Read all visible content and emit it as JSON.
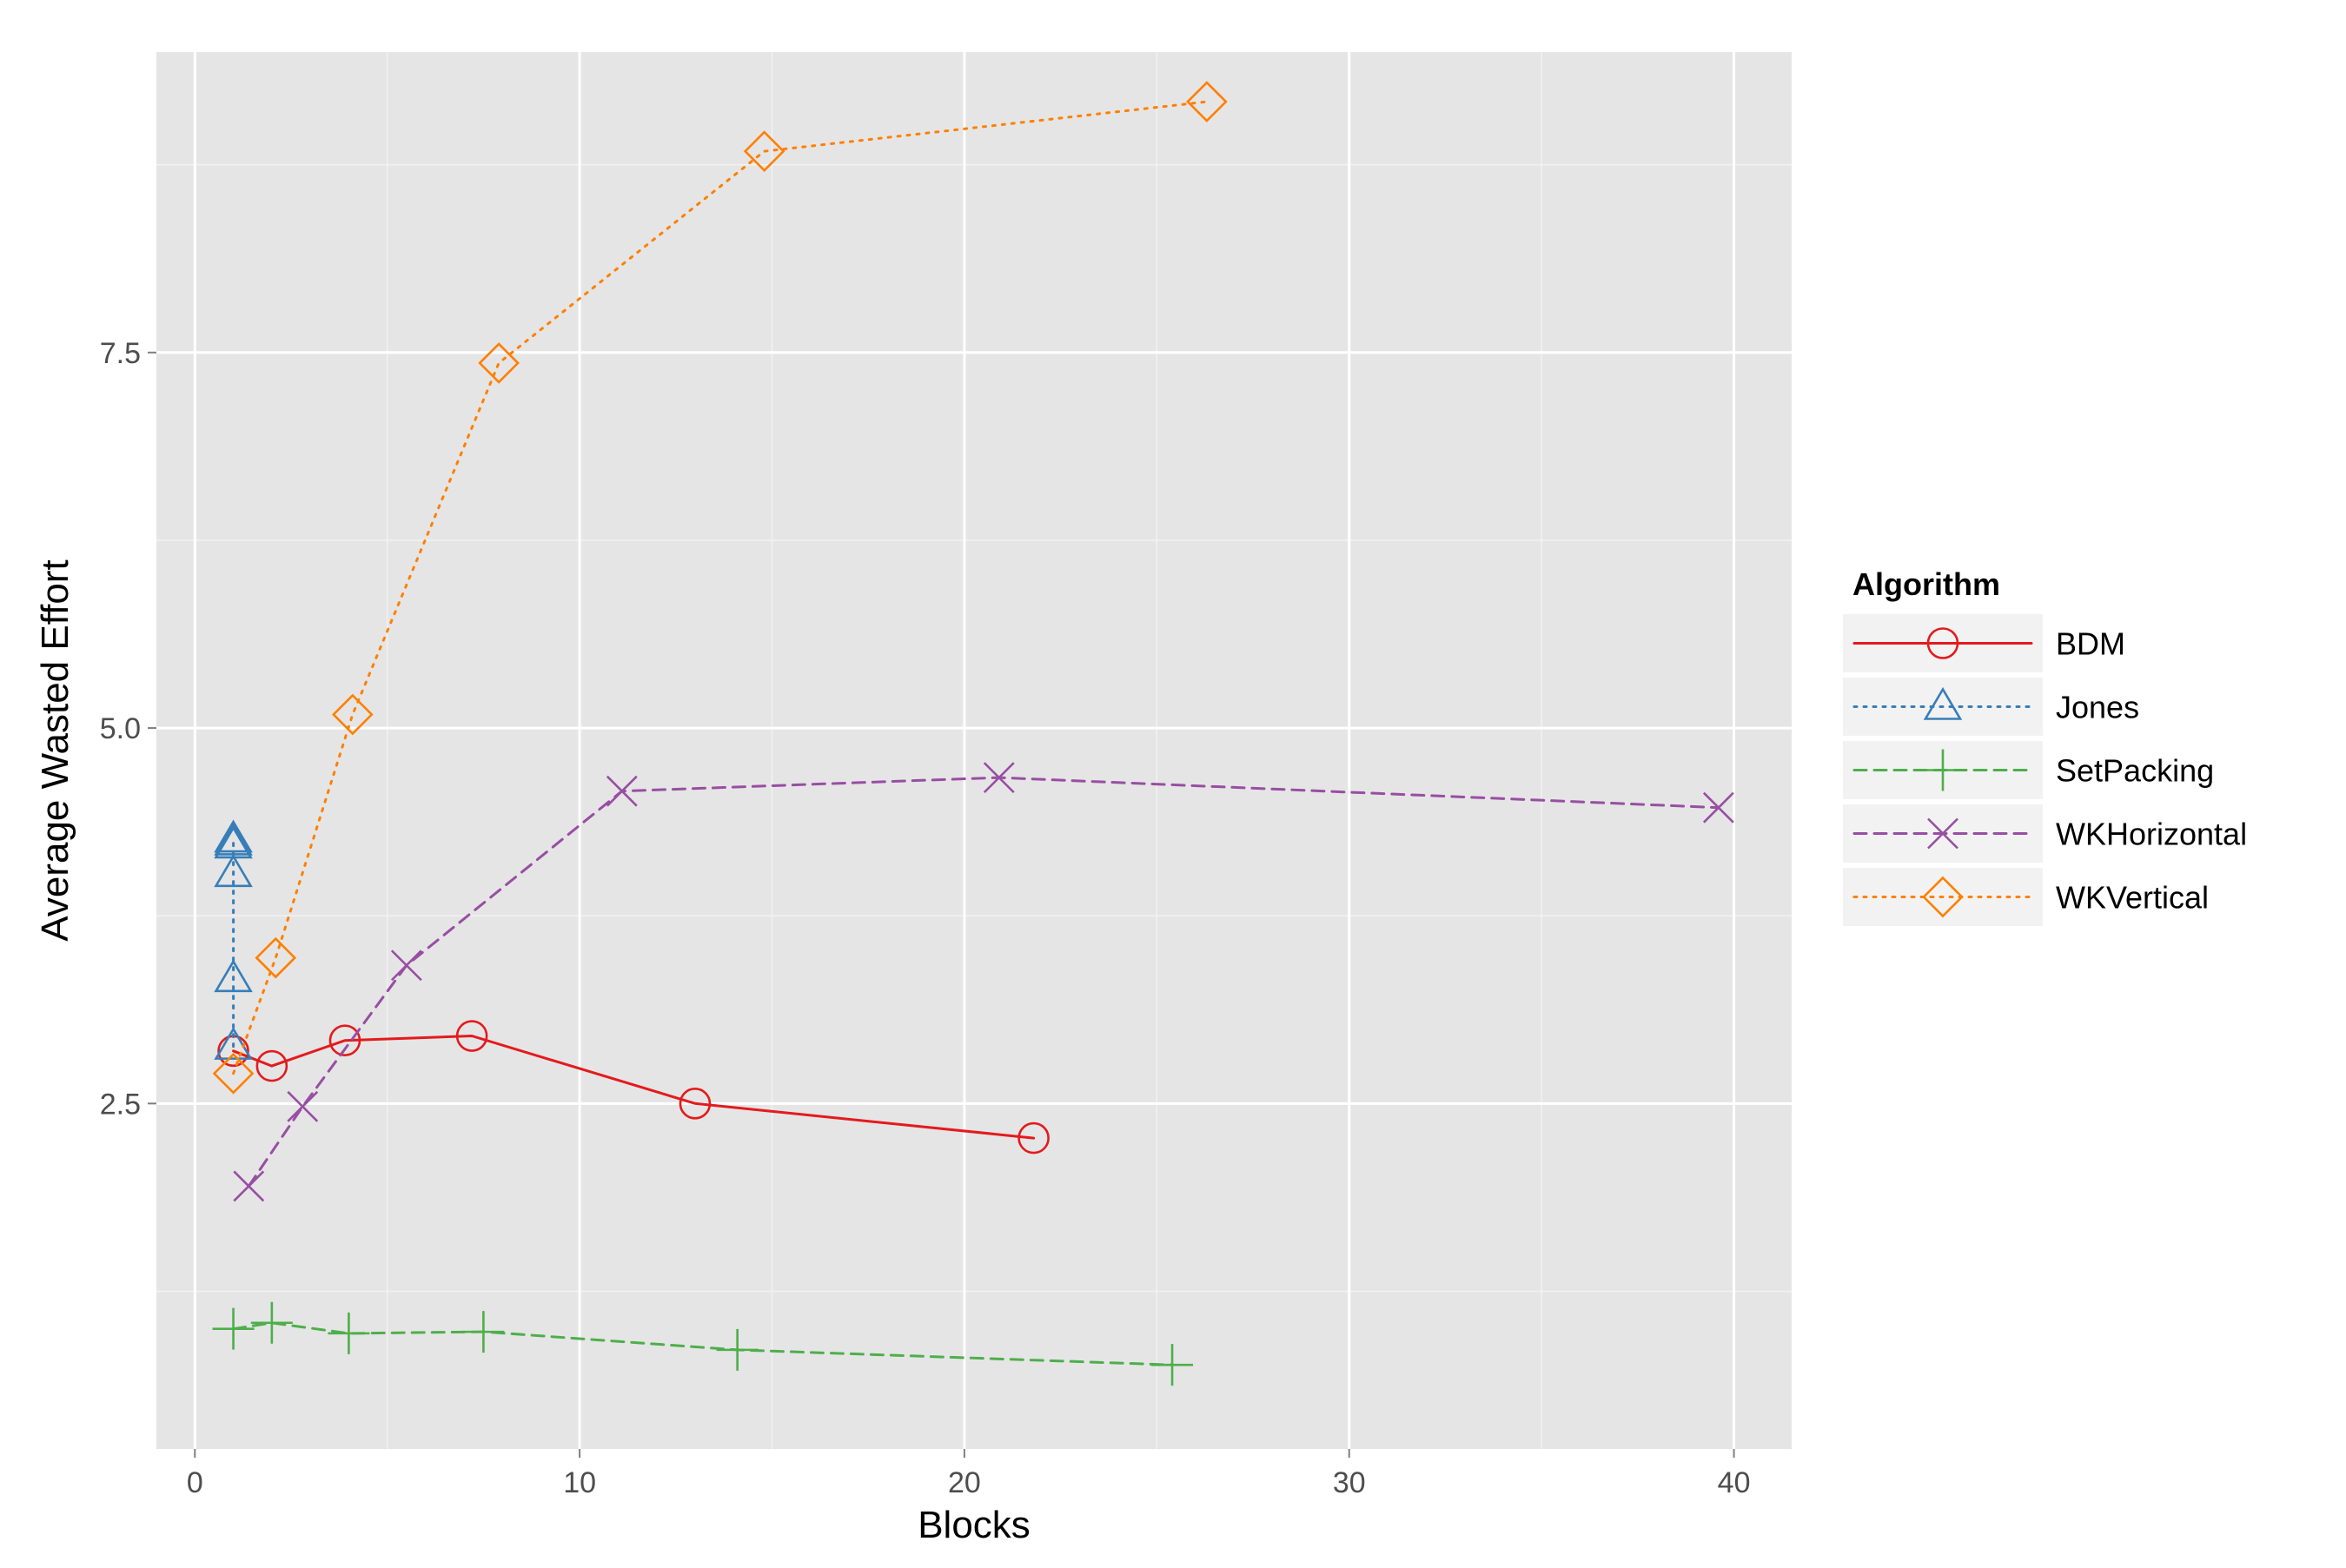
{
  "chart_data": {
    "type": "line",
    "title": "",
    "xlabel": "Blocks",
    "ylabel": "Average Wasted Effort",
    "xlim": [
      -1,
      41.5
    ],
    "ylim": [
      0.2,
      9.5
    ],
    "x_ticks": [
      0,
      10,
      20,
      30,
      40
    ],
    "x_tick_labels": [
      "0",
      "10",
      "20",
      "30",
      "40"
    ],
    "y_ticks": [
      2.5,
      5.0,
      7.5
    ],
    "y_tick_labels": [
      "2.5",
      "5.0",
      "7.5"
    ],
    "grid": true,
    "legend": {
      "title": "Algorithm",
      "position": "right"
    },
    "series": [
      {
        "name": "BDM",
        "color": "#e41a1c",
        "linestyle": "solid",
        "marker": "circle",
        "x": [
          1.0,
          2.0,
          3.9,
          7.2,
          13.0,
          21.8
        ],
        "y": [
          2.85,
          2.75,
          2.92,
          2.95,
          2.5,
          2.27
        ]
      },
      {
        "name": "Jones",
        "color": "#377eb8",
        "linestyle": "dotted",
        "marker": "triangle",
        "x": [
          1.0,
          1.0,
          1.0,
          1.0,
          1.0,
          1.0
        ],
        "y": [
          2.88,
          3.33,
          4.03,
          4.22,
          4.24,
          4.26
        ]
      },
      {
        "name": "SetPacking",
        "color": "#4daf4a",
        "linestyle": "dashed",
        "marker": "plus",
        "x": [
          1.0,
          2.0,
          4.0,
          7.5,
          14.1,
          25.4
        ],
        "y": [
          1.0,
          1.04,
          0.97,
          0.98,
          0.86,
          0.76
        ]
      },
      {
        "name": "WKHorizontal",
        "color": "#984ea3",
        "linestyle": "dashed",
        "marker": "x",
        "x": [
          1.4,
          2.8,
          5.5,
          11.1,
          20.9,
          39.6
        ],
        "y": [
          1.95,
          2.48,
          3.42,
          4.58,
          4.67,
          4.47
        ]
      },
      {
        "name": "WKVertical",
        "color": "#ff7f00",
        "linestyle": "dotted",
        "marker": "diamond",
        "x": [
          1.0,
          2.1,
          4.1,
          7.9,
          14.8,
          26.3
        ],
        "y": [
          2.7,
          3.47,
          5.09,
          7.43,
          8.84,
          9.17
        ]
      }
    ]
  }
}
